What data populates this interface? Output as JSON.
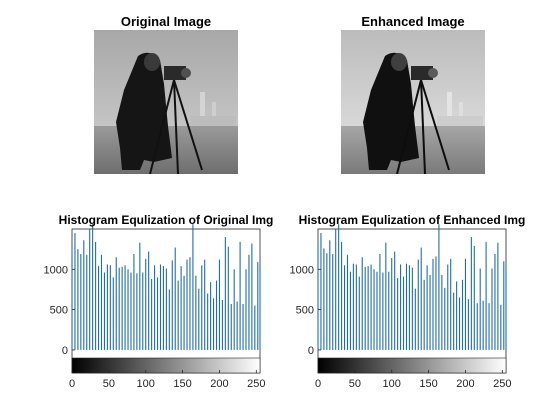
{
  "figure": {
    "panels": [
      {
        "title": "Original Image"
      },
      {
        "title": "Enhanced Image"
      }
    ]
  },
  "icons": [
    "cameraman-photo-original",
    "cameraman-photo-enhanced",
    "grayscale-colorbar"
  ],
  "colors": {
    "stem": "#1f6eab",
    "axes": "#262626",
    "background": "#ffffff"
  },
  "chart_data": [
    {
      "type": "bar",
      "title": "Histogram Equlization of Original Img",
      "xlabel": "",
      "ylabel": "",
      "xlim": [
        0,
        255
      ],
      "ylim": [
        -100,
        1500
      ],
      "xticks": [
        0,
        50,
        100,
        150,
        200,
        250
      ],
      "yticks": [
        0,
        500,
        1000
      ],
      "grid": false,
      "x": [
        0,
        4,
        8,
        12,
        16,
        20,
        24,
        28,
        32,
        36,
        40,
        44,
        48,
        52,
        56,
        60,
        64,
        68,
        72,
        76,
        80,
        84,
        88,
        92,
        96,
        100,
        104,
        108,
        112,
        116,
        120,
        124,
        128,
        132,
        136,
        140,
        144,
        148,
        152,
        156,
        160,
        164,
        168,
        172,
        176,
        180,
        184,
        188,
        192,
        196,
        200,
        204,
        208,
        212,
        216,
        220,
        224,
        228,
        232,
        236,
        240,
        244,
        248,
        252,
        255
      ],
      "values": [
        1320,
        1450,
        1250,
        1190,
        1360,
        1180,
        1500,
        1560,
        1340,
        1040,
        1180,
        960,
        1060,
        1050,
        900,
        1150,
        1020,
        1030,
        1050,
        1000,
        960,
        1190,
        950,
        1330,
        960,
        1130,
        1220,
        880,
        1050,
        900,
        1060,
        1040,
        1010,
        750,
        1110,
        1270,
        860,
        1040,
        920,
        1120,
        1150,
        1560,
        920,
        760,
        1050,
        1120,
        700,
        840,
        640,
        860,
        1120,
        620,
        1400,
        1280,
        570,
        1000,
        600,
        1340,
        570,
        1000,
        1180,
        1320,
        550,
        1090,
        1050
      ]
    },
    {
      "type": "bar",
      "title": "Histogram Equlization of Enhanced Img",
      "xlabel": "",
      "ylabel": "",
      "xlim": [
        0,
        255
      ],
      "ylim": [
        -100,
        1500
      ],
      "xticks": [
        0,
        50,
        100,
        150,
        200,
        250
      ],
      "yticks": [
        0,
        500,
        1000
      ],
      "grid": false,
      "x": [
        0,
        4,
        8,
        12,
        16,
        20,
        24,
        28,
        32,
        36,
        40,
        44,
        48,
        52,
        56,
        60,
        64,
        68,
        72,
        76,
        80,
        84,
        88,
        92,
        96,
        100,
        104,
        108,
        112,
        116,
        120,
        124,
        128,
        132,
        136,
        140,
        144,
        148,
        152,
        156,
        160,
        164,
        168,
        172,
        176,
        180,
        184,
        188,
        192,
        196,
        200,
        204,
        208,
        212,
        216,
        220,
        224,
        228,
        232,
        236,
        240,
        244,
        248,
        252,
        255
      ],
      "values": [
        1330,
        1450,
        1260,
        1200,
        1360,
        1190,
        1500,
        1560,
        1340,
        1050,
        1180,
        970,
        1070,
        1060,
        910,
        1150,
        1030,
        1040,
        1060,
        1000,
        970,
        1190,
        960,
        1330,
        970,
        1140,
        1220,
        890,
        1060,
        910,
        1070,
        1050,
        1020,
        760,
        1120,
        1270,
        870,
        1050,
        930,
        1130,
        1160,
        1560,
        930,
        770,
        1060,
        1130,
        710,
        850,
        650,
        870,
        1130,
        630,
        1400,
        1290,
        580,
        1010,
        610,
        1340,
        580,
        1010,
        1190,
        1330,
        560,
        1100,
        1060
      ]
    }
  ]
}
